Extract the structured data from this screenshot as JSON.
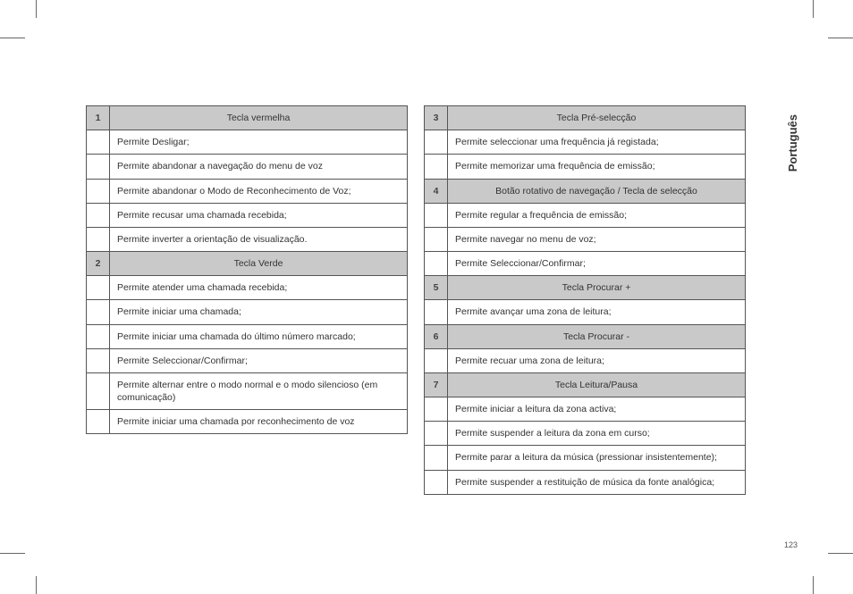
{
  "side_label": "Português",
  "page_number": "123",
  "table_left": {
    "sections": [
      {
        "num": "1",
        "title": "Tecla vermelha",
        "rows": [
          "Permite Desligar;",
          "Permite abandonar a navegação do menu de voz",
          "Permite abandonar o Modo de Reconhecimento de Voz;",
          "Permite recusar uma chamada recebida;",
          "Permite inverter a orientação de visualização."
        ]
      },
      {
        "num": "2",
        "title": "Tecla Verde",
        "rows": [
          "Permite atender uma chamada recebida;",
          "Permite iniciar uma chamada;",
          "Permite iniciar uma chamada do último número marcado;",
          "Permite Seleccionar/Confirmar;",
          "Permite alternar entre o modo normal e o modo silencioso (em comunicação)",
          "Permite iniciar uma chamada por reconhecimento de voz"
        ]
      }
    ]
  },
  "table_right": {
    "sections": [
      {
        "num": "3",
        "title": "Tecla Pré-selecção",
        "rows": [
          "Permite seleccionar uma frequência já registada;",
          "Permite memorizar uma frequência de emissão;"
        ]
      },
      {
        "num": "4",
        "title": "Botão rotativo de navegação / Tecla de selecção",
        "rows": [
          "Permite regular a frequência de emissão;",
          "Permite navegar no menu de voz;",
          "Permite Seleccionar/Confirmar;"
        ]
      },
      {
        "num": "5",
        "title": "Tecla Procurar +",
        "rows": [
          "Permite avançar uma zona de leitura;"
        ]
      },
      {
        "num": "6",
        "title": "Tecla Procurar -",
        "rows": [
          " Permite recuar uma zona de leitura;"
        ]
      },
      {
        "num": "7",
        "title": "Tecla Leitura/Pausa",
        "rows": [
          "Permite iniciar a leitura da zona activa;",
          "Permite suspender a leitura da zona em curso;",
          "Permite parar a leitura da música (pressionar insistentemente);",
          "Permite suspender a restituição de música da fonte analógica;"
        ]
      }
    ]
  }
}
